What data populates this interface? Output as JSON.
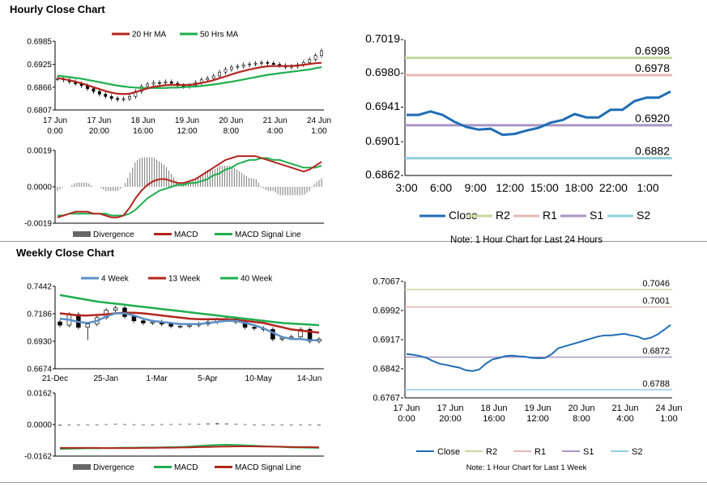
{
  "titles": {
    "hourly": "Hourly Close Chart",
    "weekly": "Weekly Close Chart"
  },
  "colors": {
    "ma_red": "#b3261e",
    "ma_green": "#1eae4e",
    "close_blue": "#1f6db5",
    "r2": "#c7d8a0",
    "r1": "#e6b8b8",
    "s1": "#a995c4",
    "s2": "#8fd0e0",
    "bar_gray": "#777777",
    "four_week": "#5b8fc6"
  },
  "hourly_price": {
    "legend": [
      "20 Hr MA",
      "50 Hrs MA"
    ],
    "y_ticks": [
      "0.6985",
      "0.6925",
      "0.6866",
      "0.6807"
    ],
    "y_range": [
      0.6807,
      0.6985
    ],
    "x_ticks": [
      [
        "17 Jun",
        "0:00"
      ],
      [
        "17 Jun",
        "20:00"
      ],
      [
        "18 Jun",
        "16:00"
      ],
      [
        "19 Jun",
        "12:00"
      ],
      [
        "20 Jun",
        "8:00"
      ],
      [
        "21 Jun",
        "4:00"
      ],
      [
        "24 Jun",
        "1:00"
      ]
    ],
    "close": [
      0.6888,
      0.6885,
      0.688,
      0.6875,
      0.687,
      0.6862,
      0.6855,
      0.6848,
      0.6842,
      0.6837,
      0.6834,
      0.6836,
      0.6842,
      0.6855,
      0.6868,
      0.6874,
      0.6878,
      0.6877,
      0.688,
      0.6876,
      0.687,
      0.6868,
      0.6871,
      0.6878,
      0.6885,
      0.6889,
      0.6895,
      0.6905,
      0.6912,
      0.6918,
      0.692,
      0.6924,
      0.6926,
      0.6928,
      0.693,
      0.6928,
      0.6925,
      0.6922,
      0.6918,
      0.692,
      0.6924,
      0.693,
      0.6938,
      0.6948,
      0.696
    ],
    "ma20": [
      0.689,
      0.6887,
      0.6884,
      0.688,
      0.6876,
      0.6871,
      0.6866,
      0.6861,
      0.6856,
      0.6852,
      0.6849,
      0.6848,
      0.6849,
      0.6853,
      0.6858,
      0.6863,
      0.6867,
      0.6869,
      0.6871,
      0.6872,
      0.6872,
      0.6872,
      0.6872,
      0.6874,
      0.6877,
      0.688,
      0.6884,
      0.6889,
      0.6894,
      0.6899,
      0.6904,
      0.6908,
      0.6912,
      0.6915,
      0.6918,
      0.692,
      0.6921,
      0.6921,
      0.6921,
      0.6921,
      0.6922,
      0.6924,
      0.6926,
      0.6928,
      0.6929
    ],
    "ma50": [
      0.6896,
      0.6894,
      0.6892,
      0.689,
      0.6888,
      0.6885,
      0.6882,
      0.6879,
      0.6876,
      0.6873,
      0.687,
      0.6868,
      0.6866,
      0.6865,
      0.6864,
      0.6864,
      0.6864,
      0.6864,
      0.6864,
      0.6865,
      0.6865,
      0.6866,
      0.6867,
      0.6868,
      0.6869,
      0.6871,
      0.6873,
      0.6875,
      0.6878,
      0.688,
      0.6883,
      0.6886,
      0.6889,
      0.6892,
      0.6895,
      0.6898,
      0.69,
      0.6902,
      0.6904,
      0.6906,
      0.6908,
      0.691,
      0.6912,
      0.6915,
      0.6918
    ]
  },
  "hourly_macd": {
    "y_ticks": [
      "0.0019",
      "0.0000",
      "-0.0019"
    ],
    "y_range": [
      -0.0019,
      0.0019
    ],
    "legend": [
      "Divergence",
      "MACD",
      "MACD Signal Line"
    ],
    "macd": [
      -0.0016,
      -0.0015,
      -0.0014,
      -0.0013,
      -0.0013,
      -0.0013,
      -0.0014,
      -0.0014,
      -0.0015,
      -0.0016,
      -0.0016,
      -0.0015,
      -0.0011,
      -0.0006,
      -0.0002,
      0.0001,
      0.0003,
      0.0004,
      0.0004,
      0.0003,
      0.0002,
      0.0002,
      0.0003,
      0.0004,
      0.0006,
      0.0008,
      0.001,
      0.0012,
      0.0014,
      0.0015,
      0.0016,
      0.0016,
      0.0016,
      0.0016,
      0.0015,
      0.0014,
      0.0013,
      0.0012,
      0.0011,
      0.001,
      0.0009,
      0.0008,
      0.0009,
      0.0011,
      0.0013
    ],
    "signal": [
      -0.0015,
      -0.0015,
      -0.0014,
      -0.0014,
      -0.0014,
      -0.0014,
      -0.0014,
      -0.0014,
      -0.0014,
      -0.0015,
      -0.0015,
      -0.0015,
      -0.0014,
      -0.0012,
      -0.0009,
      -0.0006,
      -0.0004,
      -0.0002,
      -0.0001,
      0.0,
      0.0001,
      0.0001,
      0.0002,
      0.0002,
      0.0003,
      0.0004,
      0.0006,
      0.0007,
      0.0009,
      0.001,
      0.0012,
      0.0013,
      0.0014,
      0.0014,
      0.0015,
      0.0015,
      0.0014,
      0.0014,
      0.0013,
      0.0012,
      0.0011,
      0.001,
      0.001,
      0.001,
      0.0011
    ]
  },
  "hourly_pivot": {
    "y_ticks": [
      "0.7019",
      "0.6980",
      "0.6941",
      "0.6901",
      "0.6862"
    ],
    "y_range": [
      0.6862,
      0.7019
    ],
    "x_ticks": [
      "3:00",
      "6:00",
      "9:00",
      "12:00",
      "15:00",
      "18:00",
      "22:00",
      "1:00"
    ],
    "levels": {
      "R2": 0.6998,
      "R1": 0.6978,
      "S1": 0.692,
      "S2": 0.6882
    },
    "level_labels": [
      "0.6998",
      "0.6978",
      "0.6920",
      "0.6882"
    ],
    "close": [
      0.6932,
      0.6932,
      0.6936,
      0.6932,
      0.6924,
      0.6918,
      0.6915,
      0.6916,
      0.6909,
      0.691,
      0.6914,
      0.6917,
      0.6923,
      0.6926,
      0.6933,
      0.6929,
      0.6929,
      0.6938,
      0.6938,
      0.6948,
      0.6952,
      0.6952,
      0.6959
    ],
    "legend": [
      "Close",
      "R2",
      "R1",
      "S1",
      "S2"
    ],
    "note": "Note: 1 Hour Chart for Last 24 Hours"
  },
  "weekly_price": {
    "legend": [
      "4 Week",
      "13 Week",
      "40 Week"
    ],
    "y_ticks": [
      "0.7442",
      "0.7186",
      "0.6930",
      "0.6674"
    ],
    "y_range": [
      0.6674,
      0.7442
    ],
    "x_ticks": [
      "21-Dec",
      "25-Jan",
      "1-Mar",
      "5-Apr",
      "10-May",
      "14-Jun"
    ],
    "close": [
      0.708,
      0.718,
      0.706,
      0.709,
      0.715,
      0.722,
      0.724,
      0.716,
      0.712,
      0.71,
      0.711,
      0.709,
      0.707,
      0.707,
      0.708,
      0.709,
      0.711,
      0.713,
      0.714,
      0.711,
      0.706,
      0.705,
      0.704,
      0.695,
      0.696,
      0.697,
      0.704,
      0.693,
      0.695
    ],
    "w4": [
      0.714,
      0.713,
      0.711,
      0.71,
      0.712,
      0.716,
      0.719,
      0.719,
      0.717,
      0.714,
      0.712,
      0.711,
      0.71,
      0.709,
      0.709,
      0.709,
      0.71,
      0.711,
      0.712,
      0.712,
      0.71,
      0.708,
      0.705,
      0.701,
      0.697,
      0.695,
      0.695,
      0.694,
      0.694
    ],
    "w13": [
      0.719,
      0.718,
      0.717,
      0.717,
      0.7175,
      0.718,
      0.719,
      0.7195,
      0.7195,
      0.719,
      0.718,
      0.717,
      0.716,
      0.715,
      0.714,
      0.7135,
      0.7135,
      0.7135,
      0.7135,
      0.713,
      0.712,
      0.711,
      0.71,
      0.708,
      0.706,
      0.704,
      0.703,
      0.702,
      0.701
    ],
    "w40": [
      0.736,
      0.7345,
      0.733,
      0.7315,
      0.73,
      0.729,
      0.728,
      0.727,
      0.726,
      0.725,
      0.724,
      0.723,
      0.722,
      0.721,
      0.72,
      0.719,
      0.718,
      0.717,
      0.716,
      0.715,
      0.714,
      0.713,
      0.712,
      0.711,
      0.71,
      0.7095,
      0.709,
      0.7085,
      0.708
    ]
  },
  "weekly_macd": {
    "y_ticks": [
      "0.0162",
      "0.0000",
      "-0.0162"
    ],
    "y_range": [
      -0.0162,
      0.0162
    ],
    "legend": [
      "Divergence",
      "MACD",
      "MACD Signal Line"
    ],
    "divergence": [
      -0.0006,
      -0.0004,
      -0.0004,
      -0.0002,
      0.0,
      0.0002,
      0.0004,
      0.0002,
      0.0001,
      0.0,
      0.0,
      0.0002,
      0.0002,
      0.0003,
      0.0004,
      0.0004,
      0.0006,
      0.0008,
      0.0006,
      0.0004,
      0.0002,
      0.0,
      -0.0001,
      -0.0002,
      -0.0003,
      -0.0004,
      -0.0004,
      -0.0004,
      -0.0005
    ],
    "macd": [
      -0.0125,
      -0.0124,
      -0.0123,
      -0.0122,
      -0.0122,
      -0.0121,
      -0.012,
      -0.0119,
      -0.0119,
      -0.0118,
      -0.0118,
      -0.0117,
      -0.0116,
      -0.0115,
      -0.0113,
      -0.011,
      -0.0107,
      -0.0105,
      -0.0104,
      -0.0105,
      -0.0107,
      -0.0109,
      -0.0111,
      -0.0113,
      -0.0115,
      -0.0117,
      -0.0118,
      -0.0119,
      -0.012
    ],
    "signal": [
      -0.012,
      -0.012,
      -0.012,
      -0.012,
      -0.012,
      -0.0121,
      -0.0121,
      -0.0121,
      -0.0121,
      -0.012,
      -0.012,
      -0.0119,
      -0.0119,
      -0.0118,
      -0.0117,
      -0.0116,
      -0.0115,
      -0.0114,
      -0.0113,
      -0.0112,
      -0.0112,
      -0.0112,
      -0.0113,
      -0.0113,
      -0.0114,
      -0.0115,
      -0.0116,
      -0.0116,
      -0.0117
    ]
  },
  "weekly_pivot": {
    "y_ticks": [
      "0.7067",
      "0.6992",
      "0.6917",
      "0.6842",
      "0.6767"
    ],
    "y_range": [
      0.6767,
      0.7067
    ],
    "x_ticks": [
      [
        "17 Jun",
        "0:00"
      ],
      [
        "17 Jun",
        "20:00"
      ],
      [
        "18 Jun",
        "16:00"
      ],
      [
        "19 Jun",
        "12:00"
      ],
      [
        "20 Jun",
        "8:00"
      ],
      [
        "21 Jun",
        "4:00"
      ],
      [
        "24 Jun",
        "1:00"
      ]
    ],
    "levels": {
      "R2": 0.7046,
      "R1": 0.7001,
      "S1": 0.6872,
      "S2": 0.6788
    },
    "level_labels": [
      "0.7046",
      "0.7001",
      "0.6872",
      "0.6788"
    ],
    "close": [
      0.688,
      0.6878,
      0.6875,
      0.687,
      0.6862,
      0.6855,
      0.6852,
      0.6848,
      0.6845,
      0.6838,
      0.6836,
      0.684,
      0.6855,
      0.6866,
      0.687,
      0.6875,
      0.6876,
      0.6874,
      0.6873,
      0.687,
      0.6869,
      0.687,
      0.688,
      0.6895,
      0.69,
      0.6905,
      0.691,
      0.6915,
      0.692,
      0.6925,
      0.6928,
      0.6928,
      0.693,
      0.6932,
      0.6928,
      0.6925,
      0.6918,
      0.6922,
      0.693,
      0.6942,
      0.6955
    ],
    "legend": [
      "Close",
      "R2",
      "R1",
      "S1",
      "S2"
    ],
    "note": "Note: 1 Hour Chart for Last 1 Week"
  }
}
